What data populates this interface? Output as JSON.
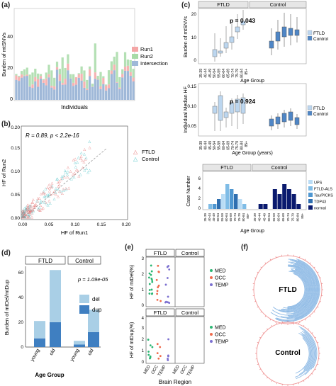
{
  "panels": {
    "a": {
      "label": "(a)",
      "ylabel": "Burden of mtSNVs",
      "xlabel": "Individuals",
      "yticks": [
        "0",
        "20",
        "40"
      ],
      "legend": [
        "Run1",
        "Run2",
        "Intersection"
      ],
      "colors": {
        "Run1": "#f4a6a6",
        "Run2": "#a7dba7",
        "Intersection": "#9fb8d8"
      }
    },
    "b": {
      "label": "(b)",
      "stat": "R = 0.89, p < 2.2e-16",
      "ylabel": "HF of Run2",
      "xlabel": "HF of Run1",
      "xticks": [
        "0.00",
        "0.05",
        "0.10",
        "0.15",
        "0.20"
      ],
      "yticks": [
        "0.00",
        "0.05",
        "0.10",
        "0.15",
        "0.20"
      ],
      "legend": [
        "FTLD",
        "Control"
      ],
      "colors": {
        "FTLD": "#e57373",
        "Control": "#4fc3c7"
      }
    },
    "c": {
      "label": "(c)",
      "strip": [
        "FTLD",
        "Control"
      ],
      "top_ylabel": "Burden of mtSNVs",
      "top_yticks": [
        "0",
        "10",
        "20"
      ],
      "top_p": "p = 0.043",
      "mid_ylabel": "Individual Median HF",
      "mid_yticks": [
        "0.05",
        "0.10",
        "0.15"
      ],
      "mid_p": "p = 0.924",
      "xlabel_years": "Age Group (years)",
      "xlabel": "Age Group",
      "age_groups": [
        "35-39",
        "40-44",
        "45-49",
        "50-54",
        "55-59",
        "60-64",
        "65-69",
        "70-74",
        "75-79",
        "80-84",
        "85+"
      ],
      "legend": [
        "FTLD",
        "Control"
      ],
      "bottom_ylabel": "Case Number",
      "bottom_yticks": [
        "0",
        "2",
        "4",
        "6"
      ],
      "bottom_legend": [
        "UPS",
        "FTLD-ALS",
        "Tau/PICKS",
        "TDP43",
        "normal"
      ],
      "bottom_legend_colors": [
        "#b9dcf5",
        "#7fbce6",
        "#4f97d1",
        "#2f6fb0",
        "#0a1a6e"
      ],
      "ftld_counts": [
        0,
        1,
        1,
        2,
        3,
        5,
        4,
        3,
        2,
        1,
        0
      ],
      "control_counts": [
        0,
        1,
        1,
        0,
        4,
        3,
        5,
        4,
        3,
        1,
        0
      ]
    },
    "d": {
      "label": "(d)",
      "strip": [
        "FTLD",
        "Control"
      ],
      "ylabel": "Burden of mtDel/mtDup",
      "xlabel": "Age Group",
      "yticks": [
        "0",
        "20",
        "40",
        "60"
      ],
      "p": "p = 1.09e-05",
      "legend": [
        "del",
        "dup"
      ],
      "categories": [
        "young",
        "old"
      ],
      "chart_data": {
        "type": "bar",
        "categories": [
          "young",
          "old",
          "young",
          "old"
        ],
        "series": [
          {
            "name": "dup",
            "values": [
              7,
              20,
              2,
              12
            ]
          },
          {
            "name": "del",
            "values": [
              14,
              42,
              3,
              18
            ]
          }
        ],
        "ylim": [
          0,
          65
        ]
      }
    },
    "e": {
      "label": "(e)",
      "strip": [
        "FTLD",
        "Control"
      ],
      "top_ylabel": "HF of mtDel(%)",
      "top_yticks": [
        "0",
        "1",
        "2",
        "3"
      ],
      "bottom_ylabel": "HF of mtDup(%)",
      "bottom_yticks": [
        "0",
        "1",
        "2",
        "3",
        "4"
      ],
      "xlabel": "Brain Region",
      "regions": [
        "MED",
        "OCC",
        "TEMP"
      ],
      "legend": [
        "MED",
        "OCC",
        "TEMP"
      ],
      "colors": {
        "MED": "#2bb673",
        "OCC": "#ef6a4b",
        "TEMP": "#7b6fd0"
      }
    },
    "f": {
      "label": "(f)",
      "top_title": "FTLD",
      "bottom_title": "Control"
    }
  }
}
